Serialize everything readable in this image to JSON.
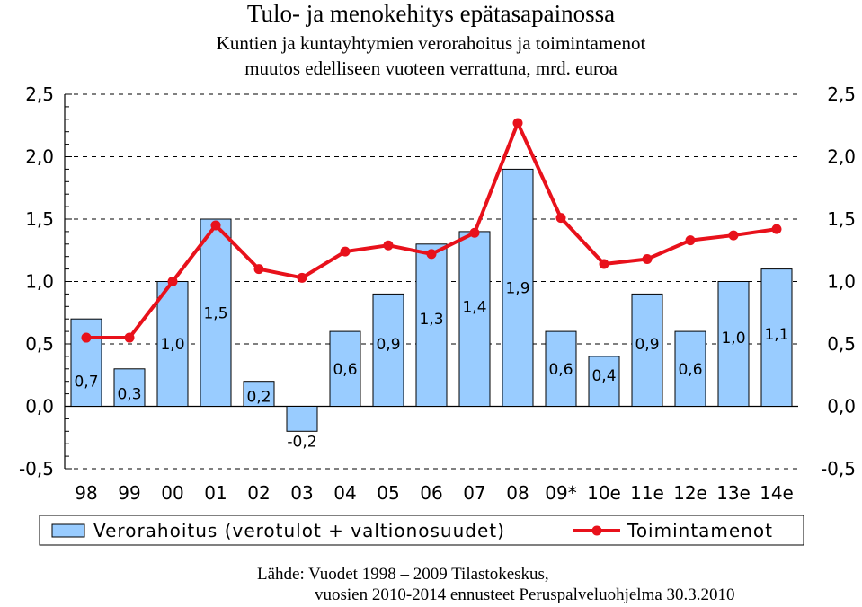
{
  "title": "Tulo- ja menokehitys epätasapainossa",
  "subtitle_line1": "Kuntien ja kuntayhtymien verorahoitus ja toimintamenot",
  "subtitle_line2": "muutos edelliseen vuoteen verrattuna, mrd. euroa",
  "source_line1": "Lähde: Vuodet 1998 – 2009 Tilastokeskus,",
  "source_line2": "vuosien 2010-2014 ennusteet Peruspalveluohjelma 30.3.2010",
  "colors": {
    "bar_fill": "#99CCFF",
    "bar_stroke": "#000000",
    "line": "#E8111B"
  },
  "chart_data": {
    "type": "bar",
    "categories": [
      "98",
      "99",
      "00",
      "01",
      "02",
      "03",
      "04",
      "05",
      "06",
      "07",
      "08",
      "09*",
      "10e",
      "11e",
      "12e",
      "13e",
      "14e"
    ],
    "ylim": [
      -0.5,
      2.5
    ],
    "yticks": [
      "-0,5",
      "0,0",
      "0,5",
      "1,0",
      "1,5",
      "2,0",
      "2,5"
    ],
    "ytick_values": [
      -0.5,
      0,
      0.5,
      1.0,
      1.5,
      2.0,
      2.5
    ],
    "grid": true,
    "legend_position": "bottom",
    "series": [
      {
        "name": "Verorahoitus (verotulot + valtionosuudet)",
        "type": "bar",
        "values": [
          0.7,
          0.3,
          1.0,
          1.5,
          0.2,
          -0.2,
          0.6,
          0.9,
          1.3,
          1.4,
          1.9,
          0.6,
          0.4,
          0.9,
          0.6,
          1.0,
          1.1
        ],
        "labels": [
          "0,7",
          "0,3",
          "1,0",
          "1,5",
          "0,2",
          "-0,2",
          "0,6",
          "0,9",
          "1,3",
          "1,4",
          "1,9",
          "0,6",
          "0,4",
          "0,9",
          "0,6",
          "1,0",
          "1,1"
        ]
      },
      {
        "name": "Toimintamenot",
        "type": "line",
        "values": [
          0.55,
          0.55,
          1.0,
          1.45,
          1.1,
          1.03,
          1.24,
          1.29,
          1.22,
          1.39,
          2.27,
          1.51,
          1.14,
          1.18,
          1.33,
          1.37,
          1.42
        ]
      }
    ]
  }
}
